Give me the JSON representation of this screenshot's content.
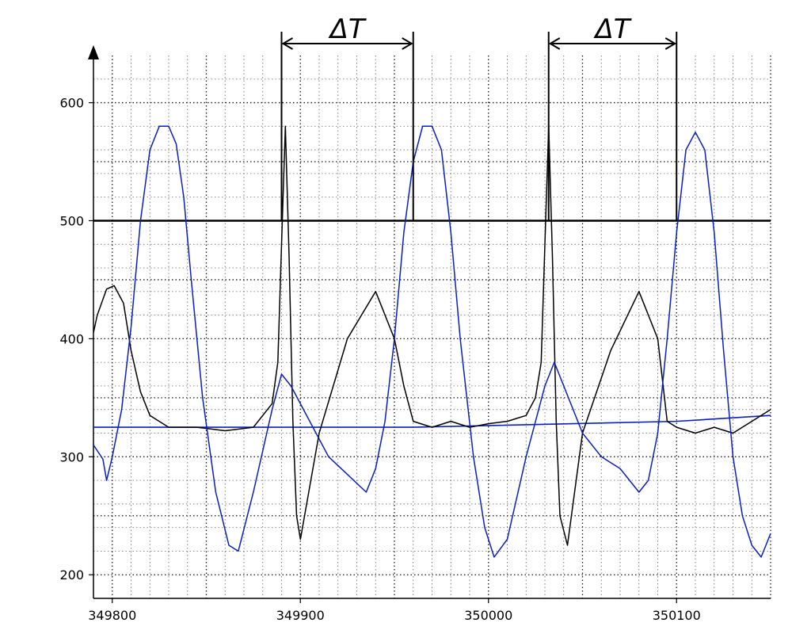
{
  "chart_data": {
    "type": "line",
    "title": "",
    "xlabel": "",
    "ylabel": "",
    "xlim": [
      349790,
      350150
    ],
    "ylim": [
      180,
      640
    ],
    "x_ticks": [
      349800,
      349900,
      350000,
      350100
    ],
    "x_tick_labels": [
      "349800",
      "349900",
      "350000",
      "350100"
    ],
    "y_ticks": [
      200,
      300,
      400,
      500,
      600
    ],
    "y_tick_labels": [
      "200",
      "300",
      "400",
      "500",
      "600"
    ],
    "grid": true,
    "colors": {
      "black_series": "#000000",
      "blue_series": "#0a1fbf",
      "grid": "#000000"
    },
    "series": [
      {
        "color": "#000000",
        "x": [
          349790,
          349792,
          349797,
          349801,
          349806,
          349810,
          349815,
          349820,
          349830,
          349845,
          349860,
          349875,
          349885,
          349888,
          349890,
          349892,
          349894,
          349896,
          349898,
          349900,
          349910,
          349925,
          349940,
          349950,
          349955,
          349960,
          349970,
          349980,
          349990,
          350000,
          350010,
          350020,
          350025,
          350028,
          350030,
          350032,
          350034,
          350036,
          350038,
          350042,
          350050,
          350065,
          350080,
          350090,
          350095,
          350100,
          350110,
          350120,
          350130,
          350140,
          350150
        ],
        "y": [
          405,
          420,
          442,
          445,
          430,
          390,
          355,
          335,
          325,
          325,
          322,
          325,
          345,
          380,
          480,
          580,
          470,
          330,
          250,
          230,
          320,
          400,
          440,
          400,
          360,
          330,
          325,
          330,
          325,
          328,
          330,
          335,
          350,
          380,
          480,
          580,
          470,
          330,
          250,
          225,
          320,
          390,
          440,
          400,
          330,
          325,
          320,
          325,
          320,
          330,
          340
        ]
      },
      {
        "color": "#0a1fbf",
        "x": [
          349790,
          349795,
          349797,
          349800,
          349805,
          349810,
          349815,
          349820,
          349825,
          349830,
          349834,
          349838,
          349842,
          349848,
          349855,
          349862,
          349867,
          349875,
          349885,
          349890,
          349895,
          349905,
          349915,
          349925,
          349935,
          349940,
          349945,
          349950,
          349955,
          349960,
          349965,
          349970,
          349975,
          349980,
          349985,
          349992,
          349998,
          350003,
          350010,
          350020,
          350030,
          350035,
          350040,
          350050,
          350060,
          350070,
          350075,
          350080,
          350085,
          350090,
          350095,
          350100,
          350105,
          350110,
          350115,
          350120,
          350125,
          350130,
          350135,
          350140,
          350145,
          350150
        ],
        "y": [
          310,
          298,
          280,
          300,
          340,
          410,
          500,
          560,
          580,
          580,
          565,
          520,
          450,
          350,
          270,
          225,
          220,
          270,
          340,
          370,
          360,
          330,
          300,
          285,
          270,
          290,
          330,
          400,
          490,
          550,
          580,
          580,
          560,
          490,
          400,
          300,
          240,
          215,
          230,
          300,
          360,
          380,
          360,
          320,
          300,
          290,
          280,
          270,
          280,
          320,
          400,
          490,
          560,
          575,
          560,
          490,
          390,
          300,
          250,
          225,
          215,
          235
        ]
      }
    ],
    "threshold_line": {
      "y": 500,
      "color": "#000000"
    },
    "baseline_line": {
      "x": [
        349790,
        349960,
        350100,
        350150
      ],
      "y": [
        325,
        325,
        330,
        335
      ],
      "color": "#0a1fbf"
    },
    "annotations": [
      {
        "label": "ΔT",
        "x_start": 349890,
        "x_end": 349960
      },
      {
        "label": "ΔT",
        "x_start": 350032,
        "x_end": 350100
      }
    ]
  }
}
